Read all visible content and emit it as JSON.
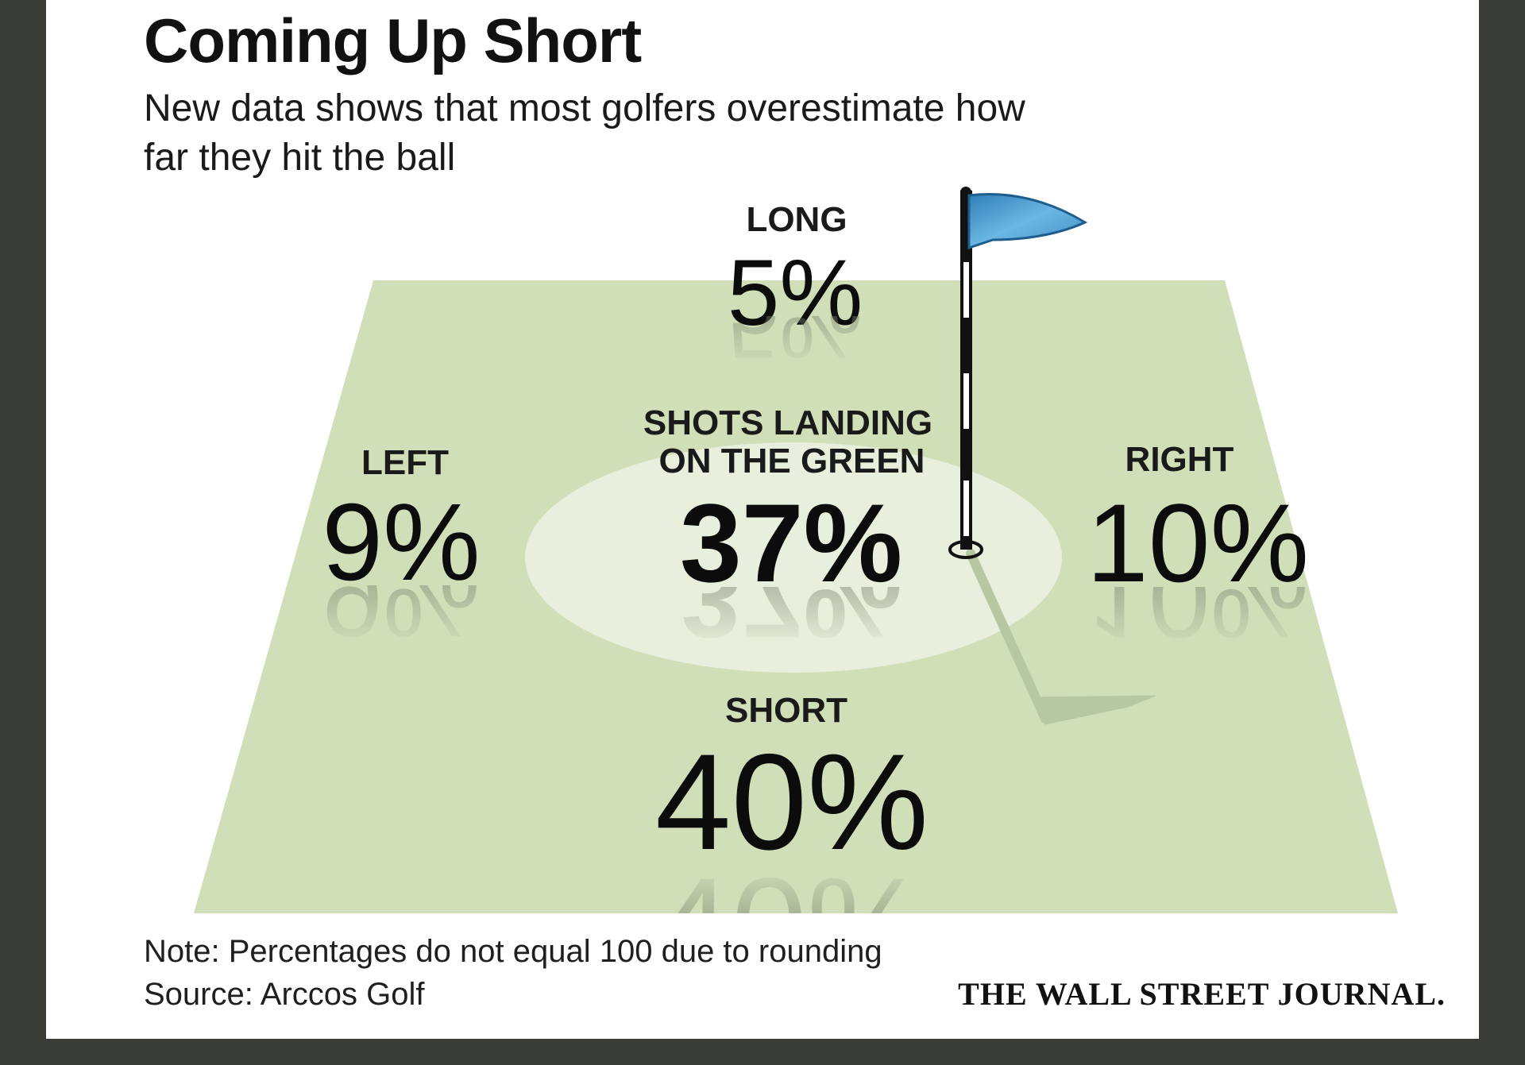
{
  "header": {
    "title": "Coming Up Short",
    "subtitle": "New data shows that most golfers overestimate how far they hit the ball"
  },
  "regions": {
    "long": {
      "label": "LONG",
      "value": "5%"
    },
    "left": {
      "label": "LEFT",
      "value": "9%"
    },
    "green": {
      "label_line1": "SHOTS LANDING",
      "label_line2": "ON THE GREEN",
      "value": "37%"
    },
    "right": {
      "label": "RIGHT",
      "value": "10%"
    },
    "short": {
      "label": "SHORT",
      "value": "40%"
    }
  },
  "chart_data": {
    "type": "other",
    "categories": [
      "LONG",
      "LEFT",
      "SHOTS LANDING ON THE GREEN",
      "RIGHT",
      "SHORT"
    ],
    "values": [
      5,
      9,
      37,
      10,
      40
    ]
  },
  "footer": {
    "note": "Note: Percentages do not equal 100 due to rounding",
    "source": "Source: Arccos Golf",
    "brand": "THE WALL STREET JOURNAL."
  },
  "colors": {
    "background": "#3a3d36",
    "fairway": "#d0dfb8",
    "green_ellipse": "#e8efdc",
    "flag": "#4a9ad0"
  },
  "icons": [
    "flag-icon"
  ]
}
